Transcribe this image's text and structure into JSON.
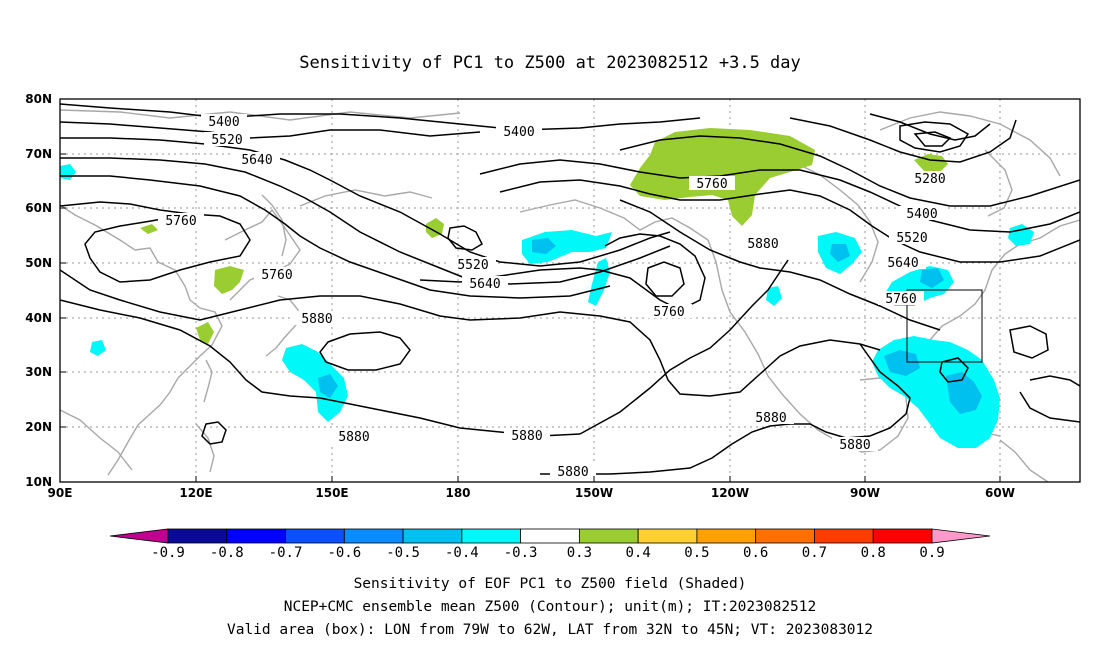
{
  "title": "Sensitivity of PC1 to Z500 at 2023082512 +3.5 day",
  "lat_labels": [
    "80N",
    "70N",
    "60N",
    "50N",
    "40N",
    "30N",
    "20N",
    "10N"
  ],
  "lon_labels": [
    "90E",
    "120E",
    "150E",
    "180",
    "150W",
    "120W",
    "90W",
    "60W"
  ],
  "contour_labels": [
    "5400",
    "5520",
    "5640",
    "5400",
    "5760",
    "5520",
    "5640",
    "5760",
    "5880",
    "5760",
    "5880",
    "5880",
    "5880",
    "5880",
    "5880",
    "5760",
    "5640",
    "5520",
    "5400",
    "5280",
    "5760"
  ],
  "colorbar": {
    "labels": [
      "-0.9",
      "-0.8",
      "-0.7",
      "-0.6",
      "-0.5",
      "-0.4",
      "-0.3",
      "0.3",
      "0.4",
      "0.5",
      "0.6",
      "0.7",
      "0.8",
      "0.9"
    ],
    "colors": [
      "#0a0a96",
      "#0000ff",
      "#0a50ff",
      "#0a8cff",
      "#00c0f0",
      "#00f8f8",
      "#ffffff",
      "#9acd32",
      "#ffd030",
      "#ffa000",
      "#ff7000",
      "#ff3c00",
      "#ff0000"
    ],
    "low_end_color": "#c00090",
    "high_end_color": "#ff99cc"
  },
  "captions": [
    "Sensitivity of EOF PC1 to Z500 field (Shaded)",
    "NCEP+CMC ensemble mean Z500 (Contour); unit(m); IT:2023082512",
    "Valid area (box): LON from 79W to 62W, LAT from 32N to 45N; VT: 2023083012"
  ]
}
